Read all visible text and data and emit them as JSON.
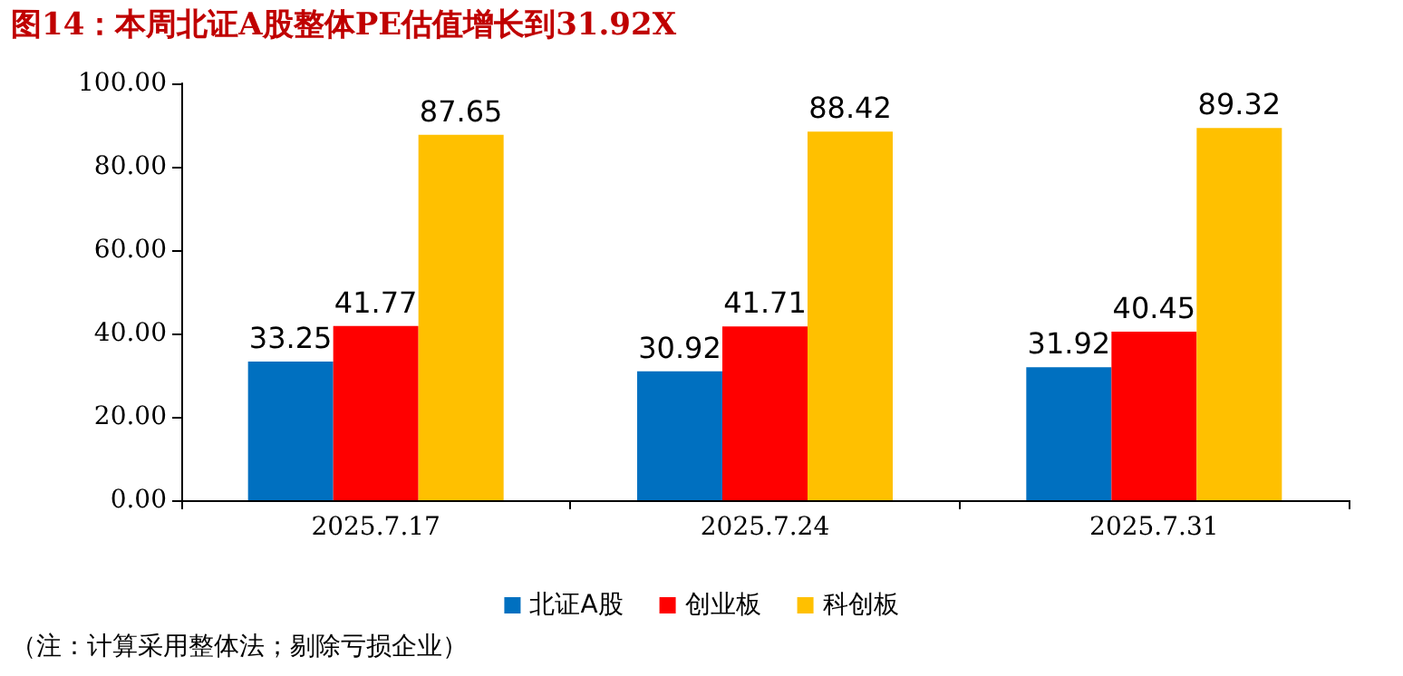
{
  "chart_data": {
    "type": "bar",
    "title": "图14：本周北证A股整体PE估值增长到31.92X",
    "categories": [
      "2025.7.17",
      "2025.7.24",
      "2025.7.31"
    ],
    "series": [
      {
        "name": "北证A股",
        "color": "#0070c0",
        "values": [
          33.25,
          30.92,
          31.92
        ]
      },
      {
        "name": "创业板",
        "color": "#ff0000",
        "values": [
          41.77,
          41.71,
          40.45
        ]
      },
      {
        "name": "科创板",
        "color": "#ffc000",
        "values": [
          87.65,
          88.42,
          89.32
        ]
      }
    ],
    "ylim": [
      0,
      100
    ],
    "yticks": [
      {
        "value": 0,
        "label": "0.00"
      },
      {
        "value": 20,
        "label": "20.00"
      },
      {
        "value": 40,
        "label": "40.00"
      },
      {
        "value": 60,
        "label": "60.00"
      },
      {
        "value": 80,
        "label": "80.00"
      },
      {
        "value": 100,
        "label": "100.00"
      }
    ],
    "grid": false,
    "legend": "bottom",
    "data_labels": true,
    "annotations": [
      "（注：计算采用整体法；剔除亏损企业）"
    ]
  }
}
